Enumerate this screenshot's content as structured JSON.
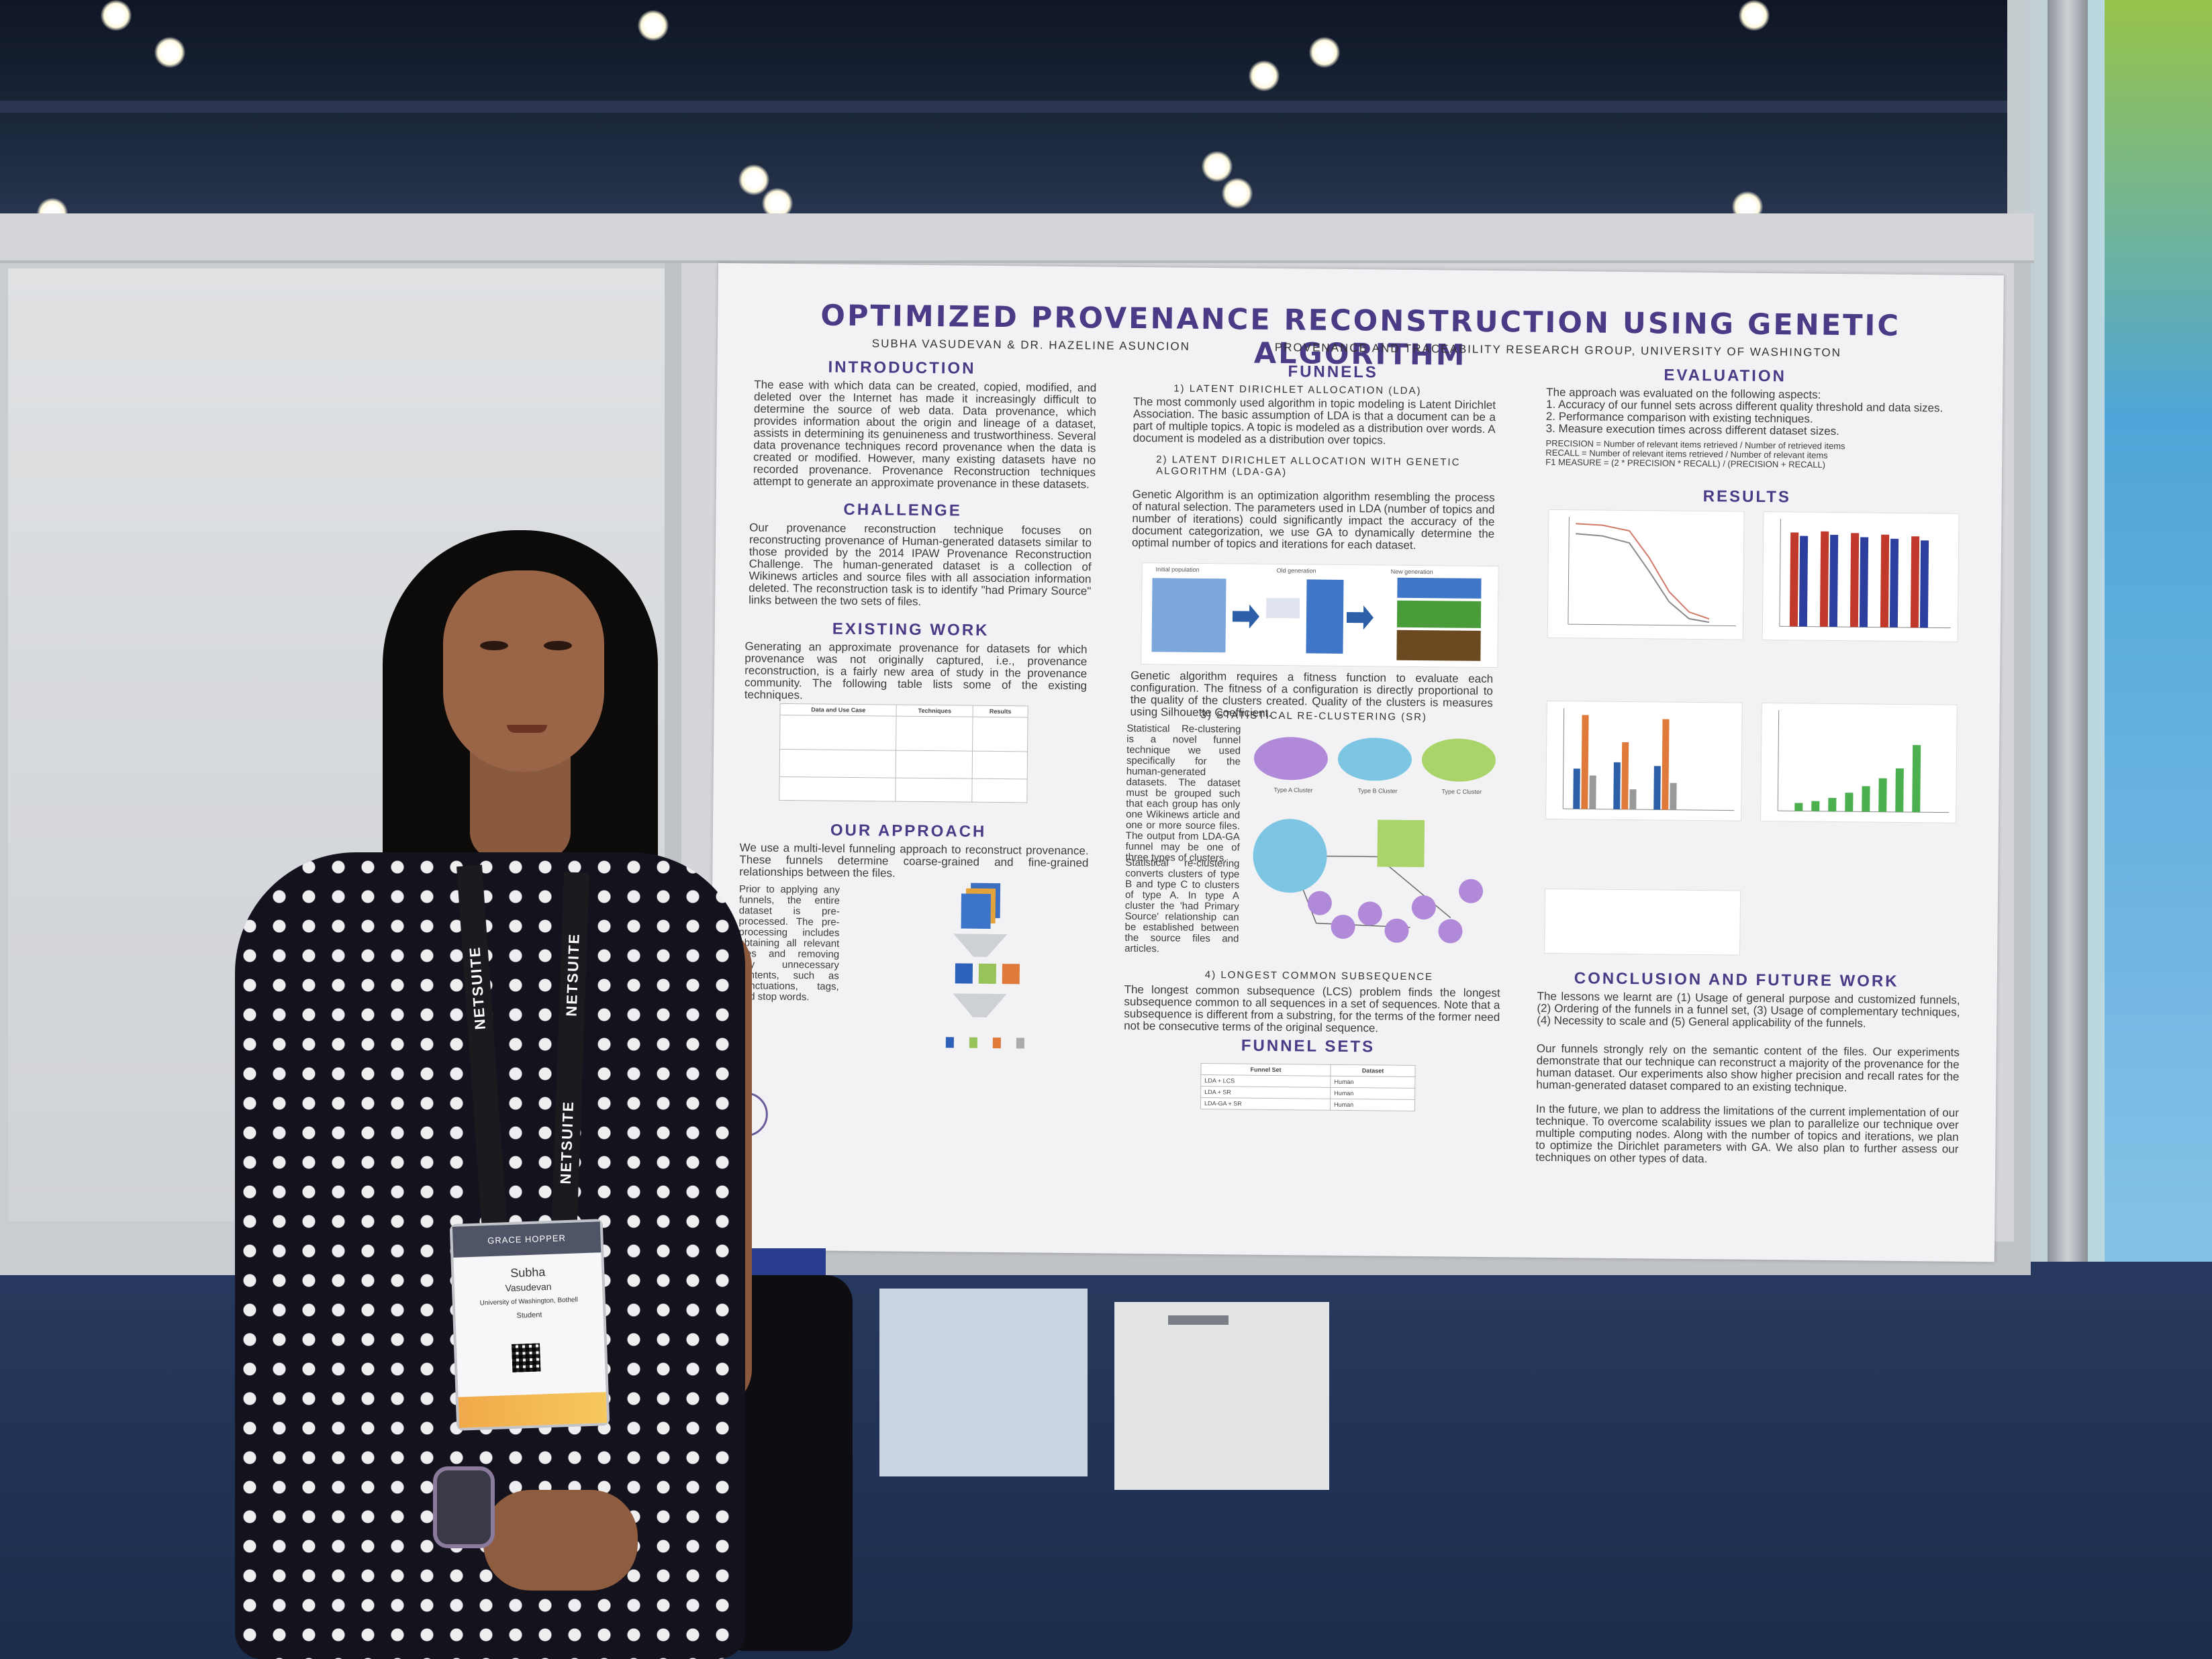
{
  "poster": {
    "title": "OPTIMIZED PROVENANCE RECONSTRUCTION USING GENETIC ALGORITHM",
    "authors": "SUBHA VASUDEVAN & DR. HAZELINE ASUNCION",
    "group": "PROVENANCE AND TRACEABILITY RESEARCH GROUP, UNIVERSITY OF WASHINGTON",
    "sections": {
      "introduction": {
        "heading": "INTRODUCTION",
        "text": "The ease with which data can be created, copied, modified, and deleted over the Internet has made it increasingly difficult to determine the source of web data. Data provenance, which provides information about the origin and lineage of a dataset, assists in determining its genuineness and trustworthiness. Several data provenance techniques record provenance when the data is created or modified. However, many existing datasets have no recorded provenance. Provenance Reconstruction techniques attempt to generate an approximate provenance in these datasets."
      },
      "challenge": {
        "heading": "CHALLENGE",
        "text": "Our provenance reconstruction technique focuses on reconstructing provenance of Human-generated datasets similar to those provided by the 2014 IPAW Provenance Reconstruction Challenge. The human-generated dataset is a collection of Wikinews articles and source files with all association information deleted. The reconstruction task is to identify \"had Primary Source\" links between the two sets of files."
      },
      "existing_work": {
        "heading": "EXISTING WORK",
        "text": "Generating an approximate provenance for datasets for which provenance was not originally captured, i.e., provenance reconstruction, is a fairly new area of study in the provenance community. The following table lists some of the existing techniques.",
        "table_headers": [
          "Data and Use Case",
          "Techniques",
          "Results"
        ]
      },
      "our_approach": {
        "heading": "OUR APPROACH",
        "text": "We use a multi-level funneling approach to reconstruct provenance. These funnels determine coarse-grained and fine-grained relationships between the files.",
        "side_text": "Prior to applying any funnels, the entire dataset is pre-processed. The pre-processing includes obtaining all relevant files and removing any unnecessary contents, such as punctuations, tags, and stop words."
      },
      "funnels": {
        "heading": "FUNNELS",
        "item1": "1) LATENT DIRICHLET ALLOCATION (LDA)",
        "item1_text": "The most commonly used algorithm in topic modeling is Latent Dirichlet Association. The basic assumption of LDA is that a document can be a part of multiple topics. A topic is modeled as a distribution over words. A document is modeled as a distribution over topics.",
        "item2": "2) LATENT DIRICHLET ALLOCATION WITH GENETIC ALGORITHM (LDA-GA)",
        "item2_text": "Genetic Algorithm is an optimization algorithm resembling the process of natural selection. The parameters used in LDA (number of topics and number of iterations) could significantly impact the accuracy of the document categorization, we use GA to dynamically determine the optimal number of topics and iterations for each dataset.",
        "item2_text_b": "Genetic algorithm requires a fitness function to evaluate each configuration. The fitness of a configuration is directly proportional to the quality of the clusters created. Quality of the clusters is measures using Silhouette Coefficient.",
        "item3": "3) STATISTICAL RE-CLUSTERING (SR)",
        "item3_text": "Statistical Re-clustering is a novel funnel technique we used specifically for the human-generated datasets. The dataset must be grouped such that each group has only one Wikinews article and one or more source files. The output from LDA-GA funnel may be one of three types of clusters.",
        "item3_text_b": "Statistical re-clustering converts clusters of type B and type C to clusters of type A. In type A cluster the 'had Primary Source' relationship can be established between the source files and articles.",
        "item4": "4) LONGEST COMMON SUBSEQUENCE",
        "item4_text": "The longest common subsequence (LCS) problem finds the longest subsequence common to all sequences in a set of sequences. Note that a subsequence is different from a substring, for the terms of the former need not be consecutive terms of the original sequence."
      },
      "funnel_sets": {
        "heading": "FUNNEL SETS",
        "headers": [
          "Funnel Set",
          "Dataset"
        ],
        "rows": [
          [
            "LDA + LCS",
            "Human"
          ],
          [
            "LDA + SR",
            "Human"
          ],
          [
            "LDA-GA + SR",
            "Human"
          ]
        ]
      },
      "evaluation": {
        "heading": "EVALUATION",
        "text": "The approach was evaluated on the following aspects:\n1. Accuracy of our funnel sets across different quality threshold and data sizes.\n2. Performance comparison with existing techniques.\n3. Measure execution times across different dataset sizes.",
        "formulas": "PRECISION = Number of relevant items retrieved / Number of retrieved items\nRECALL = Number of relevant items retrieved / Number of relevant items\nF1 MEASURE = (2 * PRECISION * RECALL) / (PRECISION + RECALL)"
      },
      "results": {
        "heading": "RESULTS"
      },
      "conclusion": {
        "heading": "CONCLUSION AND FUTURE WORK",
        "text1": "The lessons we learnt are (1) Usage of general purpose and customized funnels, (2) Ordering of the funnels in a funnel set, (3) Usage of complementary techniques, (4) Necessity to scale and (5) General applicability of the funnels.",
        "text2": "Our funnels strongly rely on the semantic content of the files. Our experiments demonstrate that our technique can reconstruct a majority of the provenance for the human dataset. Our experiments also show higher precision and recall rates for the human-generated dataset compared to an existing technique.",
        "text3": "In the future, we plan to address the limitations of the current implementation of our technique. To overcome scalability issues we plan to parallelize our technique over multiple computing nodes. Along with the number of topics and iterations, we plan to optimize the Dirichlet parameters with GA. We also plan to further assess our techniques on other types of data."
      }
    },
    "figure_labels": {
      "initial_population": "Initial population",
      "old_generation": "Old generation",
      "new_generation": "New generation",
      "type_a": "Type A Cluster",
      "type_b": "Type B Cluster",
      "type_c": "Type C Cluster"
    }
  },
  "badge": {
    "event": "GRACE HOPPER",
    "first_name": "Subha",
    "last_name": "Vasudevan",
    "affiliation": "University of Washington, Bothell",
    "role": "Student"
  },
  "lanyard": {
    "text": "NETSUITE"
  },
  "colors": {
    "poster_title": "#4b3a86",
    "dress": "#14121c",
    "poster_bg": "#f2f1f4"
  }
}
